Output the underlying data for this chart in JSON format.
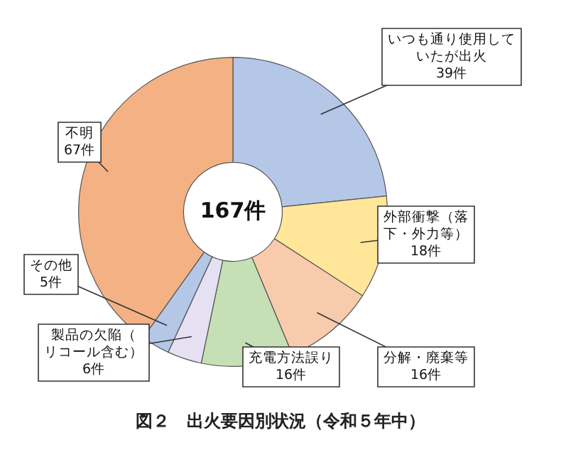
{
  "chart_data": {
    "type": "donut",
    "title": "図２　出火要因別状況（令和５年中）",
    "categories": [
      "いつも通り使用していたが出火",
      "外部衝撃（落下・外力等）",
      "分解・廃棄等",
      "充電方法誤り",
      "製品の欠陥（リコール含む）",
      "その他",
      "不明"
    ],
    "values": [
      39,
      18,
      16,
      16,
      6,
      5,
      67
    ],
    "colors": [
      "#b4c7e7",
      "#ffe699",
      "#f8cbad",
      "#c5e0b4",
      "#e6e1f2",
      "#b4c7e7",
      "#f4b183"
    ],
    "value_labels": [
      "39件",
      "18件",
      "16件",
      "16件",
      "6件",
      "5件",
      "67件"
    ],
    "annotations": [
      "167件"
    ],
    "legend": false
  }
}
